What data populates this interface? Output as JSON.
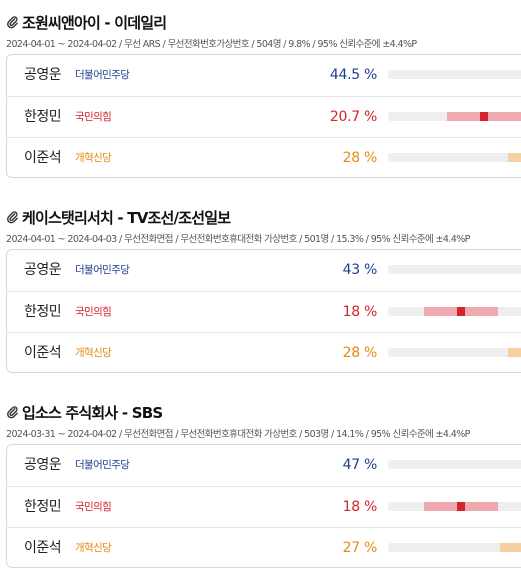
{
  "polls": [
    {
      "title": "조원씨앤아이 - 이데일리",
      "meta": "2024-04-01 ~ 2024-04-02 / 무선 ARS / 무선전화번호가상번호 / 504명 / 9.8% / 95% 신뢰수준에 ±4.4%P",
      "rows": [
        {
          "name": "공영운",
          "party": "더불어민주당",
          "pct": "44.5 %",
          "value": 44.5,
          "color_key": "dem"
        },
        {
          "name": "한정민",
          "party": "국민의힘",
          "pct": "20.7 %",
          "value": 20.7,
          "color_key": "ppp"
        },
        {
          "name": "이준석",
          "party": "개혁신당",
          "pct": "28 %",
          "value": 28,
          "color_key": "new"
        }
      ]
    },
    {
      "title": "케이스탯리서치 - TV조선/조선일보",
      "meta": "2024-04-01 ~ 2024-04-03 / 무선전화면접 / 무선전화번호휴대전화 가상번호 / 501명 / 15.3% / 95% 신뢰수준에 ±4.4%P",
      "rows": [
        {
          "name": "공영운",
          "party": "더불어민주당",
          "pct": "43 %",
          "value": 43,
          "color_key": "dem"
        },
        {
          "name": "한정민",
          "party": "국민의힘",
          "pct": "18 %",
          "value": 18,
          "color_key": "ppp"
        },
        {
          "name": "이준석",
          "party": "개혁신당",
          "pct": "28 %",
          "value": 28,
          "color_key": "new"
        }
      ]
    },
    {
      "title": "입소스 주식회사 - SBS",
      "meta": "2024-03-31 ~ 2024-04-02 / 무선전화면접 / 무선전화번호휴대전화 가상번호 / 503명 / 14.1% / 95% 신뢰수준에 ±4.4%P",
      "rows": [
        {
          "name": "공영운",
          "party": "더불어민주당",
          "pct": "47 %",
          "value": 47,
          "color_key": "dem"
        },
        {
          "name": "한정민",
          "party": "국민의힘",
          "pct": "18 %",
          "value": 18,
          "color_key": "ppp"
        },
        {
          "name": "이준석",
          "party": "개혁신당",
          "pct": "27 %",
          "value": 27,
          "color_key": "new"
        }
      ]
    }
  ],
  "margin_of_error": 4.4,
  "colors": {
    "dem": {
      "text": "#1f3f8f",
      "ci": "#a9b9de",
      "point": "#1f3f8f"
    },
    "ppp": {
      "text": "#d4242b",
      "ci": "#eeaaae",
      "point": "#d4242b"
    },
    "new": {
      "text": "#e68a16",
      "ci": "#f6cfa3",
      "point": "#f0a24a"
    }
  }
}
